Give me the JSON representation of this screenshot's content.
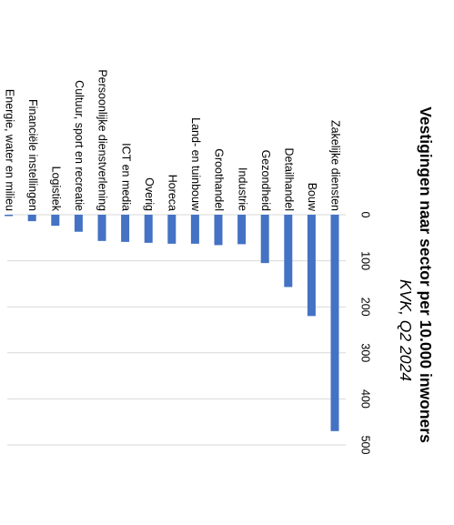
{
  "chart_data": {
    "type": "bar",
    "orientation": "rotated-90-clockwise",
    "title": "Vestigingen naar sector per 10.000 inwoners",
    "subtitle": "KVK, Q2 2024",
    "categories": [
      "Zakelijke diensten",
      "Bouw",
      "Detailhandel",
      "Gezondheid",
      "Industrie",
      "Groothandel",
      "Land- en tuinbouw",
      "Horeca",
      "Overig",
      "ICT en media",
      "Persoonlijke dienstverlening",
      "Cultuur, sport en recreatie",
      "Logistiek",
      "Financiële instellingen",
      "Energie, water en milieu"
    ],
    "values": [
      470,
      220,
      157,
      105,
      64,
      66,
      63,
      63,
      61,
      59,
      57,
      37,
      24,
      14,
      3
    ],
    "ticks": [
      "0",
      "100",
      "200",
      "300",
      "400",
      "500"
    ],
    "xlim": [
      0,
      500
    ],
    "grid": true,
    "legend": "none",
    "bar_color": "#4472C4",
    "grid_color": "#D9D9D9"
  }
}
